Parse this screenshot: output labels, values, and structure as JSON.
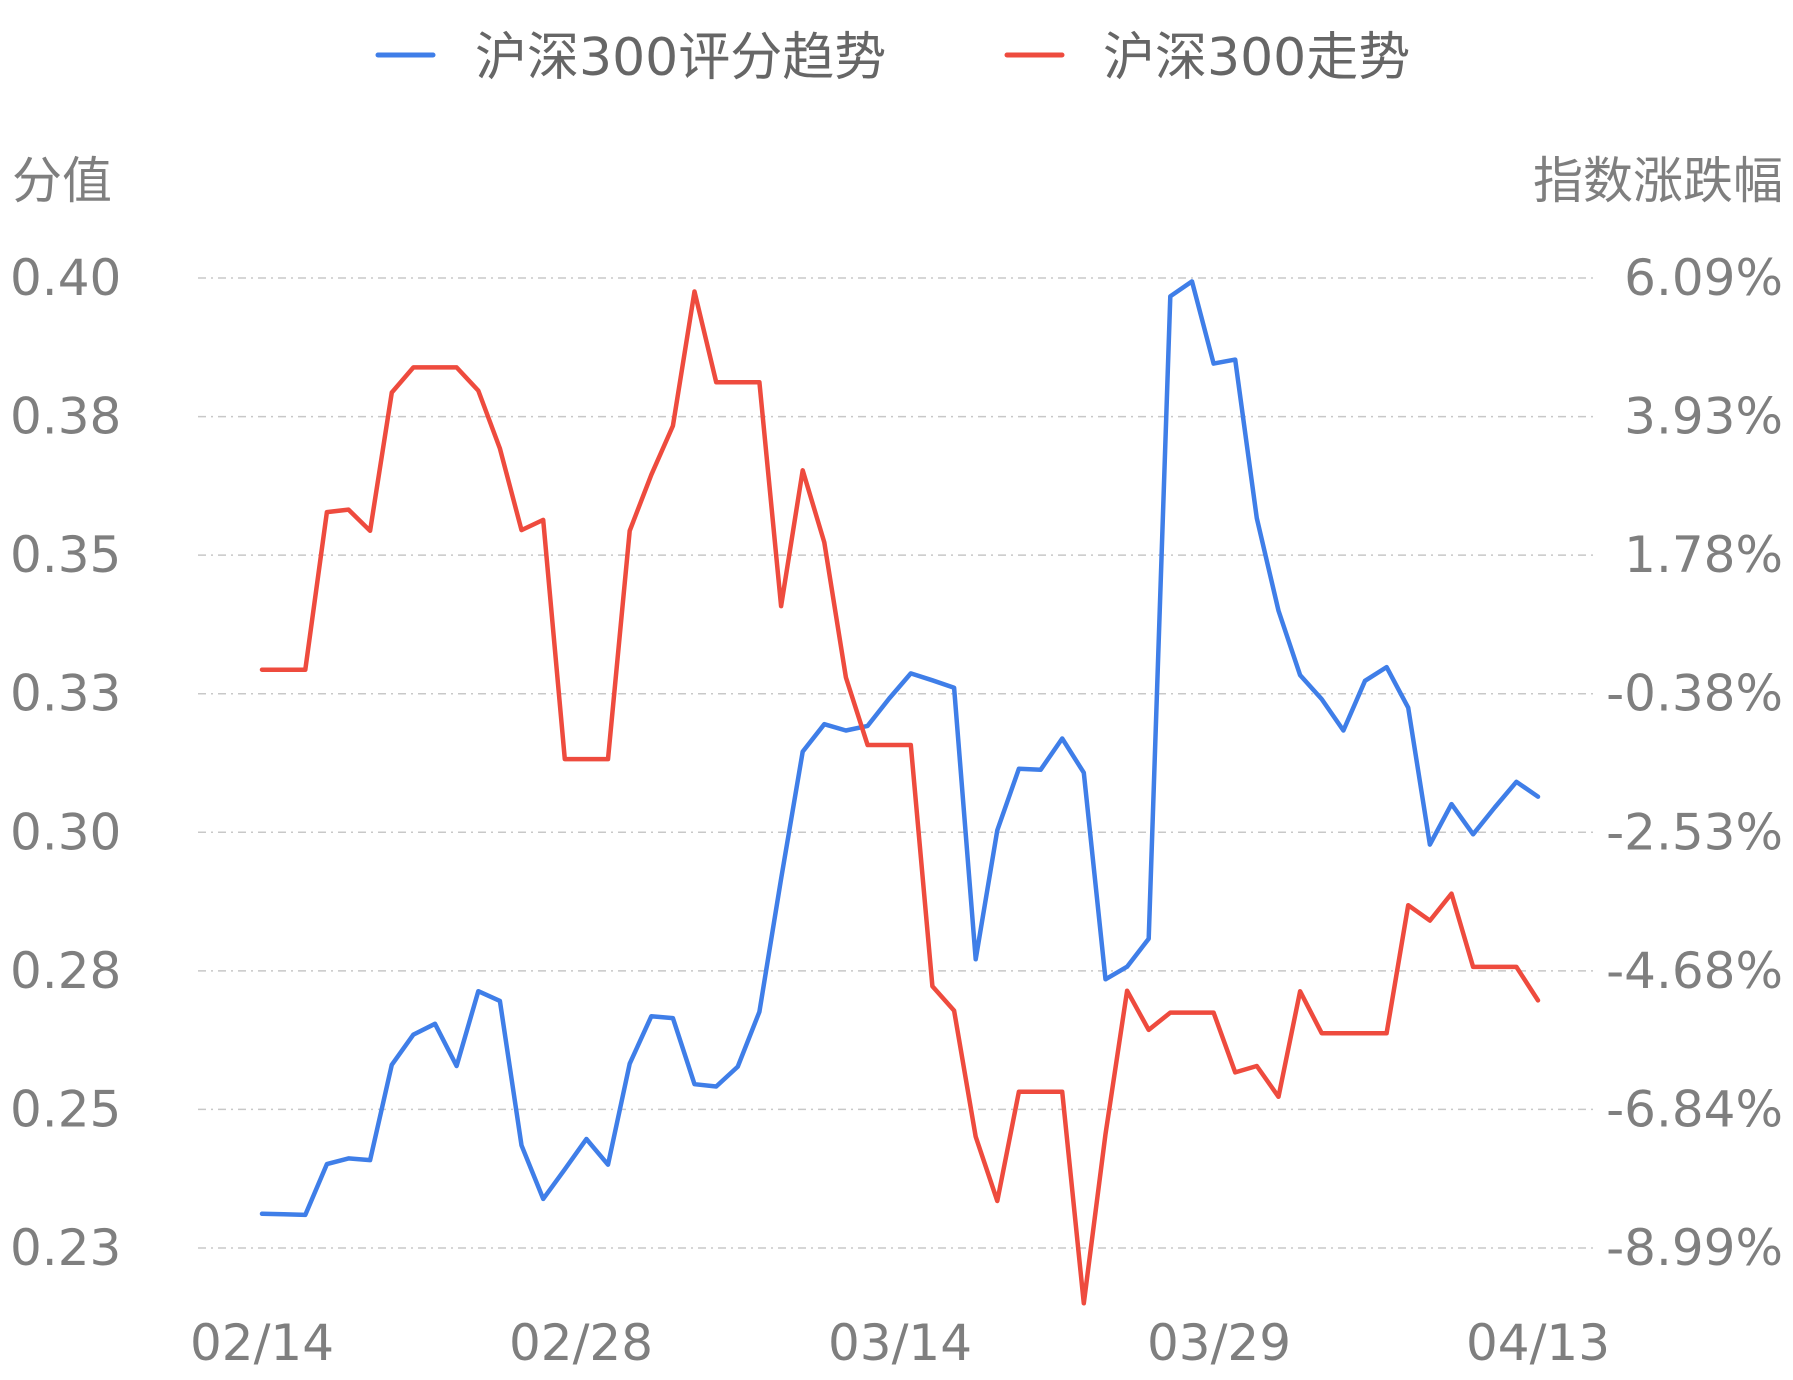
{
  "chart_data": {
    "type": "line",
    "legend_position": "top",
    "grid": true,
    "y_left_label": "分值",
    "y_right_label": "指数涨跌幅",
    "y_left_ticks": [
      "0.40",
      "0.38",
      "0.35",
      "0.33",
      "0.30",
      "0.28",
      "0.25",
      "0.23"
    ],
    "y_right_ticks": [
      "6.09%",
      "3.93%",
      "1.78%",
      "-0.38%",
      "-2.53%",
      "-4.68%",
      "-6.84%",
      "-8.99%"
    ],
    "x_tick_labels": [
      "02/14",
      "02/28",
      "03/14",
      "03/29",
      "04/13"
    ],
    "y_left_range": [
      0.2313,
      0.4013
    ],
    "y_right_range": [
      -8.99,
      6.09
    ],
    "point_count": 60,
    "series": [
      {
        "name": "沪深300评分趋势",
        "color": "#3f7ee8",
        "axis": "left",
        "values": [
          0.2373,
          0.2372,
          0.2371,
          0.246,
          0.247,
          0.2467,
          0.2634,
          0.2687,
          0.2706,
          0.2632,
          0.2763,
          0.2746,
          0.2493,
          0.2399,
          0.2451,
          0.2504,
          0.2459,
          0.2636,
          0.2719,
          0.2716,
          0.26,
          0.2596,
          0.2631,
          0.2727,
          0.296,
          0.3183,
          0.3231,
          0.322,
          0.3228,
          0.3276,
          0.332,
          0.3308,
          0.3295,
          0.2819,
          0.3045,
          0.3153,
          0.3151,
          0.3206,
          0.3146,
          0.2784,
          0.2806,
          0.2855,
          0.3981,
          0.4007,
          0.3863,
          0.387,
          0.3592,
          0.343,
          0.3317,
          0.3275,
          0.322,
          0.3307,
          0.3331,
          0.326,
          0.302,
          0.3091,
          0.3038,
          0.3085,
          0.313,
          0.3104
        ]
      },
      {
        "name": "沪深300走势",
        "color": "#ee4b3e",
        "axis": "right",
        "values": [
          0.0,
          0.0,
          0.0,
          2.45,
          2.49,
          2.16,
          4.31,
          4.7,
          4.7,
          4.7,
          4.34,
          3.44,
          2.17,
          2.33,
          -1.39,
          -1.39,
          -1.39,
          2.16,
          3.03,
          3.79,
          5.88,
          4.47,
          4.47,
          4.47,
          0.99,
          3.1,
          1.98,
          -0.12,
          -1.17,
          -1.17,
          -1.17,
          -4.92,
          -5.3,
          -7.26,
          -8.26,
          -6.56,
          -6.56,
          -6.56,
          -9.85,
          -7.22,
          -4.99,
          -5.6,
          -5.33,
          -5.33,
          -5.33,
          -6.26,
          -6.16,
          -6.64,
          -5.0,
          -5.65,
          -5.65,
          -5.65,
          -5.65,
          -3.66,
          -3.9,
          -3.48,
          -4.62,
          -4.62,
          -4.62,
          -5.14
        ]
      }
    ]
  }
}
